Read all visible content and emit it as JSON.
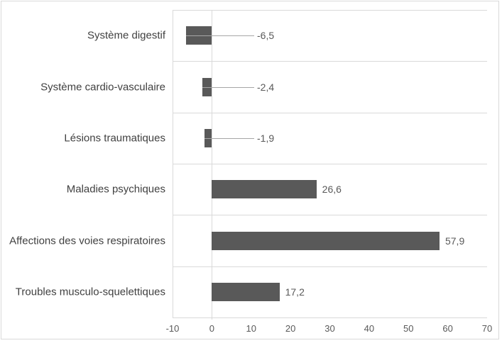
{
  "chart_data": {
    "type": "bar",
    "orientation": "horizontal",
    "title": "",
    "categories": [
      "Système digestif",
      "Système cardio-vasculaire",
      "Lésions traumatiques",
      "Maladies psychiques",
      "Affections des voies respiratoires",
      "Troubles musculo-squelettiques"
    ],
    "values": [
      -6.5,
      -2.4,
      -1.9,
      26.6,
      57.9,
      17.2
    ],
    "value_labels": [
      "-6,5",
      "-2,4",
      "-1,9",
      "26,6",
      "57,9",
      "17,2"
    ],
    "xlim": [
      -10,
      70
    ],
    "xticks": [
      -10,
      0,
      10,
      20,
      30,
      40,
      50,
      60,
      70
    ],
    "xtick_labels": [
      "-10",
      "0",
      "10",
      "20",
      "30",
      "40",
      "50",
      "60",
      "70"
    ],
    "grid": "horizontal-category-bands",
    "legend_position": "none",
    "colors": {
      "bar": "#595959",
      "gridline": "#d9d9d9",
      "axis_line": "#d9d9d9",
      "leader_line": "#a6a6a6",
      "category_label": "#404040",
      "data_label": "#595959",
      "tick_label": "#595959",
      "chart_border": "#d9d9d9",
      "background": "#ffffff"
    }
  }
}
